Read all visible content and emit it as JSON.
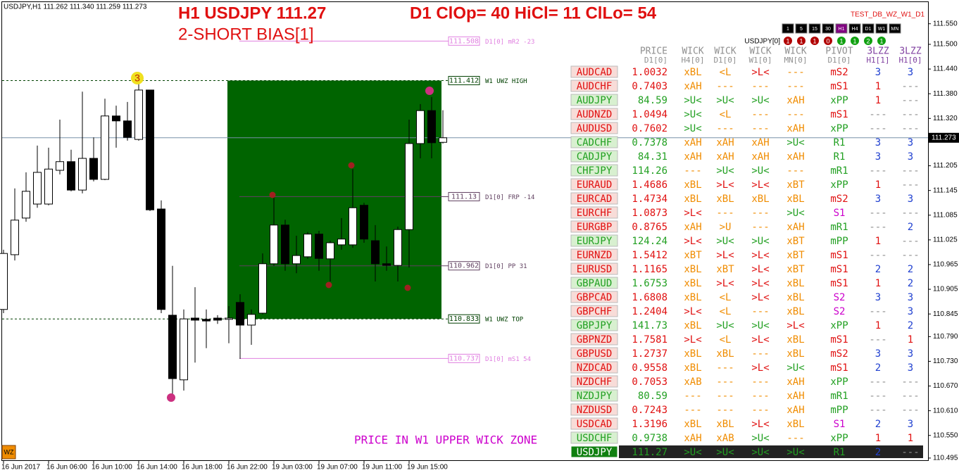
{
  "header": {
    "symbol_info": "USDJPY,H1  111.262 111.340 111.259 111.273",
    "title_left": "H1 USDJPY 111.27",
    "title_right": "D1 ClOp= 40 HiCl= 11 ClLo= 54",
    "bias": "2-SHORT BIAS[1]",
    "indicator_name": "TEST_DB_WZ_W1_D1"
  },
  "chart": {
    "candles": [
      [
        110.856,
        111.001,
        110.847,
        110.992
      ],
      [
        110.989,
        111.15,
        110.975,
        111.073
      ],
      [
        111.078,
        111.189,
        111.069,
        111.143
      ],
      [
        111.112,
        111.254,
        111.103,
        111.189
      ],
      [
        111.112,
        111.249,
        111.109,
        111.197
      ],
      [
        111.194,
        111.317,
        111.184,
        111.215
      ],
      [
        111.215,
        111.244,
        111.143,
        111.146
      ],
      [
        111.146,
        111.385,
        111.138,
        111.223
      ],
      [
        111.223,
        111.274,
        111.167,
        111.172
      ],
      [
        111.172,
        111.368,
        111.17,
        111.326
      ],
      [
        111.326,
        111.351,
        111.249,
        111.314
      ],
      [
        111.314,
        111.36,
        111.266,
        111.274
      ],
      [
        111.269,
        111.411,
        111.266,
        111.389
      ],
      [
        111.389,
        111.389,
        111.095,
        111.098
      ],
      [
        111.1,
        111.121,
        110.847,
        110.856
      ],
      [
        110.842,
        110.962,
        110.65,
        110.688
      ],
      [
        110.685,
        110.856,
        110.659,
        110.833
      ],
      [
        110.835,
        110.91,
        110.727,
        110.83
      ],
      [
        110.832,
        110.856,
        110.762,
        110.828
      ],
      [
        110.835,
        110.842,
        110.821,
        110.83
      ],
      [
        110.832,
        110.864,
        110.774,
        110.835
      ],
      [
        110.873,
        110.893,
        110.736,
        110.818
      ],
      [
        110.818,
        110.856,
        110.77,
        110.844
      ],
      [
        110.847,
        110.992,
        110.844,
        110.967
      ],
      [
        110.967,
        111.132,
        110.962,
        111.061
      ],
      [
        111.061,
        111.074,
        110.95,
        110.967
      ],
      [
        110.967,
        111.035,
        110.944,
        110.987
      ],
      [
        110.984,
        111.044,
        110.979,
        111.039
      ],
      [
        111.039,
        111.047,
        110.95,
        110.98
      ],
      [
        110.979,
        111.023,
        110.924,
        111.018
      ],
      [
        111.013,
        111.078,
        111.001,
        111.027
      ],
      [
        111.013,
        111.197,
        111.006,
        111.103
      ],
      [
        111.109,
        111.115,
        111.018,
        111.027
      ],
      [
        111.023,
        111.061,
        110.924,
        110.967
      ],
      [
        110.967,
        111.009,
        110.95,
        110.963
      ],
      [
        110.963,
        111.057,
        110.924,
        111.05
      ],
      [
        111.05,
        111.317,
        110.958,
        111.259
      ],
      [
        111.259,
        111.355,
        111.223,
        111.339
      ],
      [
        111.339,
        111.372,
        111.223,
        111.261
      ],
      [
        111.262,
        111.34,
        111.259,
        111.273
      ]
    ],
    "categories": [
      "16 Jun 2017",
      null,
      null,
      null,
      "16 Jun 06:00",
      null,
      null,
      null,
      "16 Jun 10:00",
      null,
      null,
      null,
      "16 Jun 14:00",
      null,
      null,
      null,
      "16 Jun 18:00",
      null,
      null,
      null,
      "16 Jun 22:00",
      null,
      null,
      null,
      "19 Jun 03:00",
      null,
      null,
      null,
      "19 Jun 07:00",
      null,
      null,
      null,
      "19 Jun 11:00",
      null,
      null,
      null,
      "19 Jun 15:00",
      null,
      null,
      null
    ],
    "ylim": [
      110.48,
      111.565
    ],
    "yticks": [
      {
        "value": 111.55,
        "label": "111.550"
      },
      {
        "value": 111.5,
        "label": "111.500"
      },
      {
        "value": 111.44,
        "label": "111.440"
      },
      {
        "value": 111.38,
        "label": "111.380"
      },
      {
        "value": 111.32,
        "label": "111.320"
      },
      {
        "value": 111.205,
        "label": "111.205"
      },
      {
        "value": 111.145,
        "label": "111.145"
      },
      {
        "value": 111.085,
        "label": "111.085"
      },
      {
        "value": 111.025,
        "label": "111.025"
      },
      {
        "value": 110.965,
        "label": "110.965"
      },
      {
        "value": 110.905,
        "label": "110.905"
      },
      {
        "value": 110.845,
        "label": "110.845"
      },
      {
        "value": 110.79,
        "label": "110.790"
      },
      {
        "value": 110.73,
        "label": "110.730"
      },
      {
        "value": 110.67,
        "label": "110.670"
      },
      {
        "value": 110.61,
        "label": "110.610"
      },
      {
        "value": 110.55,
        "label": "110.550"
      },
      {
        "value": 110.495,
        "label": "110.495"
      }
    ],
    "current_price": 111.273,
    "zone": {
      "top": 111.412,
      "bottom": 110.833,
      "color": "#006400"
    },
    "levels": [
      {
        "price": 111.508,
        "label": "D1[0] mR2  -23",
        "color": "#e080e0",
        "style": "solid"
      },
      {
        "price": 111.412,
        "label": "W1 UWZ HIGH",
        "color": "#004000",
        "style": "dashed"
      },
      {
        "price": 111.13,
        "label": "D1[0] FRP  -14",
        "color": "#604060",
        "style": "solid"
      },
      {
        "price": 110.962,
        "label": "D1[0] PP   31",
        "color": "#604060",
        "style": "solid"
      },
      {
        "price": 110.833,
        "label": "W1 UWZ TOP",
        "color": "#004000",
        "style": "dashed"
      },
      {
        "price": 110.737,
        "label": "D1[0] mS1  54",
        "color": "#e080e0",
        "style": "solid"
      }
    ],
    "zigzag_label": "3",
    "annotation": "PRICE IN W1 UPPER WICK ZONE",
    "badge": "WZ"
  },
  "timeframe_buttons": [
    "1",
    "5",
    "15",
    "30",
    "H1",
    "H4",
    "D1",
    "W1",
    "MN"
  ],
  "status_label": "USDJPY[0]",
  "status_lights": [
    {
      "label": "1",
      "color": "#b00000"
    },
    {
      "label": "1",
      "color": "#b00000"
    },
    {
      "label": "1",
      "color": "#b00000"
    },
    {
      "label": "0",
      "color": "#b00000"
    },
    {
      "label": "1",
      "color": "#10a010"
    },
    {
      "label": "1",
      "color": "#10a010"
    },
    {
      "label": "2",
      "color": "#10a010"
    },
    {
      "label": "1",
      "color": "#10a010"
    }
  ],
  "table": {
    "columns": [
      {
        "title": "PRICE",
        "sub": "D1[0]",
        "color": "#909090"
      },
      {
        "title": "WICK",
        "sub": "H4[0]",
        "color": "#f08c00"
      },
      {
        "title": "WICK",
        "sub": "D1[0]",
        "color": "#f08c00"
      },
      {
        "title": "WICK",
        "sub": "W1[0]",
        "color": "#f08c00"
      },
      {
        "title": "WICK",
        "sub": "MN[0]",
        "color": "#f08c00"
      },
      {
        "title": "PIVOT",
        "sub": "D1[0]",
        "color": "#22a022"
      },
      {
        "title": "3LZZ",
        "sub": "H1[1]",
        "color": "#909090"
      },
      {
        "title": "3LZZ",
        "sub": "H1[0]",
        "color": "#909090"
      }
    ],
    "header_colors": [
      "#909090",
      "#909090",
      "#909090",
      "#909090",
      "#909090",
      "#909090",
      "#8040a0",
      "#8040a0"
    ],
    "text_colors": {
      ">U<": "#22a022",
      ">L<": "#e01010",
      "mS2": "#e01010",
      "mS1": "#e01010",
      "S1": "#cc00cc",
      "S2": "#cc00cc",
      "R1": "#22a022",
      "mR1": "#22a022",
      "xPP": "#22a022",
      "mPP": "#22a022",
      "1": "#e01010",
      "2": "#2040d0",
      "3": "#2040d0"
    },
    "rows": [
      {
        "cells": [
          "AUDCAD",
          1.0032,
          "xBL",
          "<L",
          ">L<",
          "---",
          "mS2",
          "3",
          "3"
        ],
        "color": "#e01010"
      },
      {
        "cells": [
          "AUDCHF",
          0.7403,
          "xAH",
          "---",
          "---",
          "---",
          "mS1",
          "1",
          "---"
        ],
        "color": "#e01010"
      },
      {
        "cells": [
          "AUDJPY",
          84.59,
          ">U<",
          ">U<",
          ">U<",
          "xAH",
          "xPP",
          "1",
          "---"
        ],
        "color": "#22a022"
      },
      {
        "cells": [
          "AUDNZD",
          1.0494,
          ">U<",
          "<L",
          "---",
          "---",
          "mS1",
          "---",
          "---"
        ],
        "color": "#e01010"
      },
      {
        "cells": [
          "AUDUSD",
          0.7602,
          ">U<",
          "---",
          "---",
          "xAH",
          "xPP",
          "---",
          "---"
        ],
        "color": "#e01010"
      },
      {
        "cells": [
          "CADCHF",
          0.7378,
          "xAH",
          "xAH",
          "xAH",
          ">U<",
          "R1",
          "3",
          "3"
        ],
        "color": "#22a022"
      },
      {
        "cells": [
          "CADJPY",
          84.31,
          "xAH",
          "xAH",
          "xAH",
          "xAH",
          "R1",
          "3",
          "3"
        ],
        "color": "#22a022"
      },
      {
        "cells": [
          "CHFJPY",
          114.26,
          "---",
          ">U<",
          ">U<",
          "---",
          "mR1",
          "---",
          "---"
        ],
        "color": "#22a022"
      },
      {
        "cells": [
          "EURAUD",
          1.4686,
          "xBL",
          ">L<",
          ">L<",
          "xBT",
          "xPP",
          "1",
          "---"
        ],
        "color": "#e01010"
      },
      {
        "cells": [
          "EURCAD",
          1.4734,
          "xBL",
          "xBL",
          "xBL",
          "xBL",
          "mS2",
          "3",
          "3"
        ],
        "color": "#e01010"
      },
      {
        "cells": [
          "EURCHF",
          1.0873,
          ">L<",
          "---",
          "---",
          ">U<",
          "S1",
          "---",
          "---"
        ],
        "color": "#e01010"
      },
      {
        "cells": [
          "EURGBP",
          0.8765,
          "xAH",
          ">U",
          "---",
          "xAH",
          "mR1",
          "---",
          "2"
        ],
        "color": "#e01010"
      },
      {
        "cells": [
          "EURJPY",
          124.24,
          ">L<",
          ">U<",
          ">U<",
          "xBT",
          "mPP",
          "1",
          "---"
        ],
        "color": "#22a022"
      },
      {
        "cells": [
          "EURNZD",
          1.5412,
          "xBT",
          ">L<",
          ">L<",
          "xBT",
          "mS1",
          "---",
          "---"
        ],
        "color": "#e01010"
      },
      {
        "cells": [
          "EURUSD",
          1.1165,
          "xBL",
          "xBT",
          ">L<",
          "xBT",
          "mS1",
          "2",
          "2"
        ],
        "color": "#e01010"
      },
      {
        "cells": [
          "GBPAUD",
          1.6753,
          "xBL",
          ">L<",
          ">L<",
          "xBL",
          "mS1",
          "1",
          "2"
        ],
        "color": "#22a022"
      },
      {
        "cells": [
          "GBPCAD",
          1.6808,
          "xBL",
          "<L",
          ">L<",
          "xBL",
          "S2",
          "3",
          "3"
        ],
        "color": "#e01010"
      },
      {
        "cells": [
          "GBPCHF",
          1.2404,
          ">L<",
          "<L",
          "---",
          "xBL",
          "S2",
          "---",
          "3"
        ],
        "color": "#e01010"
      },
      {
        "cells": [
          "GBPJPY",
          141.73,
          "xBL",
          ">U<",
          ">U<",
          ">L<",
          "xPP",
          "1",
          "2"
        ],
        "color": "#22a022"
      },
      {
        "cells": [
          "GBPNZD",
          1.7581,
          ">L<",
          "<L",
          ">L<",
          "xBL",
          "mS1",
          "---",
          "1"
        ],
        "color": "#e01010"
      },
      {
        "cells": [
          "GBPUSD",
          1.2737,
          "xBL",
          "xBL",
          "---",
          "xBL",
          "mS2",
          "3",
          "3"
        ],
        "color": "#e01010"
      },
      {
        "cells": [
          "NZDCAD",
          0.9558,
          "xBL",
          "---",
          ">L<",
          ">U<",
          "mS1",
          "2",
          "3"
        ],
        "color": "#e01010"
      },
      {
        "cells": [
          "NZDCHF",
          0.7053,
          "xAB",
          "---",
          "---",
          "xAH",
          "xPP",
          "---",
          "---"
        ],
        "color": "#e01010"
      },
      {
        "cells": [
          "NZDJPY",
          80.59,
          "---",
          "---",
          "---",
          "xAH",
          "mR1",
          "---",
          "---"
        ],
        "color": "#22a022"
      },
      {
        "cells": [
          "NZDUSD",
          0.7243,
          "---",
          "---",
          "---",
          "xAH",
          "mPP",
          "---",
          "---"
        ],
        "color": "#e01010"
      },
      {
        "cells": [
          "USDCAD",
          1.3196,
          "xBL",
          "xBL",
          ">L<",
          "xBL",
          "S1",
          "2",
          "3"
        ],
        "color": "#e01010"
      },
      {
        "cells": [
          "USDCHF",
          0.9738,
          "xAH",
          "xAB",
          ">U<",
          "---",
          "xPP",
          "1",
          "1"
        ],
        "color": "#22a022"
      },
      {
        "cells": [
          "USDJPY",
          111.27,
          ">U<",
          ">U<",
          ">U<",
          ">U<",
          "R1",
          "2",
          "---"
        ],
        "color": "#22a022",
        "selected": true
      }
    ]
  }
}
